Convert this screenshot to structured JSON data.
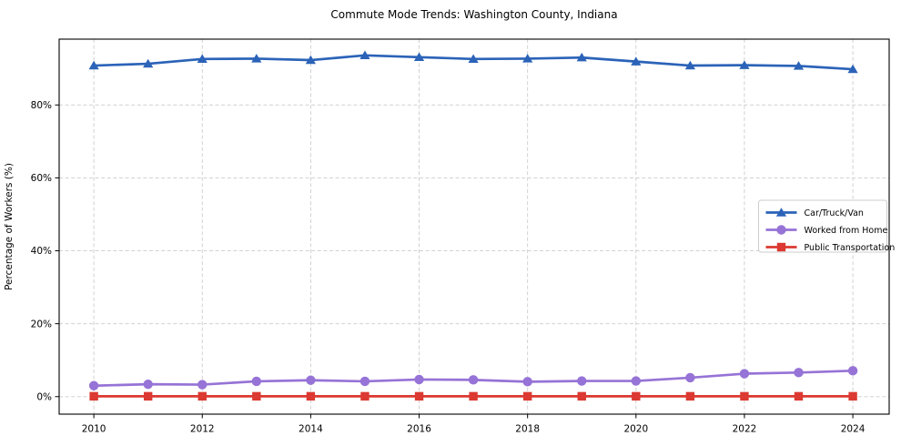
{
  "chart_data": {
    "type": "line",
    "title": "Commute Mode Trends: Washington County, Indiana",
    "xlabel": "",
    "ylabel": "Percentage of Workers (%)",
    "x": [
      2010,
      2011,
      2012,
      2013,
      2014,
      2015,
      2016,
      2017,
      2018,
      2019,
      2020,
      2021,
      2022,
      2023,
      2024
    ],
    "x_ticks": [
      2010,
      2012,
      2014,
      2016,
      2018,
      2020,
      2022,
      2024
    ],
    "x_tick_labels": [
      "2010",
      "2012",
      "2014",
      "2016",
      "2018",
      "2020",
      "2022",
      "2024"
    ],
    "y_ticks": [
      0,
      20,
      40,
      60,
      80
    ],
    "y_tick_labels": [
      "0%",
      "20%",
      "40%",
      "60%",
      "80%"
    ],
    "xlim": [
      2009.36,
      2024.67
    ],
    "ylim": [
      -4.8,
      98.05
    ],
    "grid": true,
    "grid_style": "dashed",
    "legend_position": "center-right",
    "series": [
      {
        "name": "Car/Truck/Van",
        "color": "#2b63b8",
        "marker": "triangle",
        "values": [
          90.8,
          91.3,
          92.6,
          92.7,
          92.3,
          93.6,
          93.1,
          92.6,
          92.7,
          93.0,
          91.9,
          90.8,
          90.9,
          90.7,
          89.8
        ]
      },
      {
        "name": "Worked from Home",
        "color": "#9673d6",
        "marker": "circle",
        "values": [
          3.0,
          3.4,
          3.3,
          4.2,
          4.5,
          4.2,
          4.7,
          4.6,
          4.1,
          4.3,
          4.3,
          5.2,
          6.3,
          6.6,
          7.1
        ]
      },
      {
        "name": "Public Transportation",
        "color": "#db3931",
        "marker": "square",
        "values": [
          0.1,
          0.1,
          0.1,
          0.1,
          0.1,
          0.1,
          0.1,
          0.1,
          0.1,
          0.1,
          0.1,
          0.1,
          0.1,
          0.1,
          0.1
        ]
      }
    ]
  },
  "colors": {
    "grid": "#cccccc",
    "spine": "#000000",
    "legend_border": "#cccccc",
    "background": "#ffffff"
  }
}
